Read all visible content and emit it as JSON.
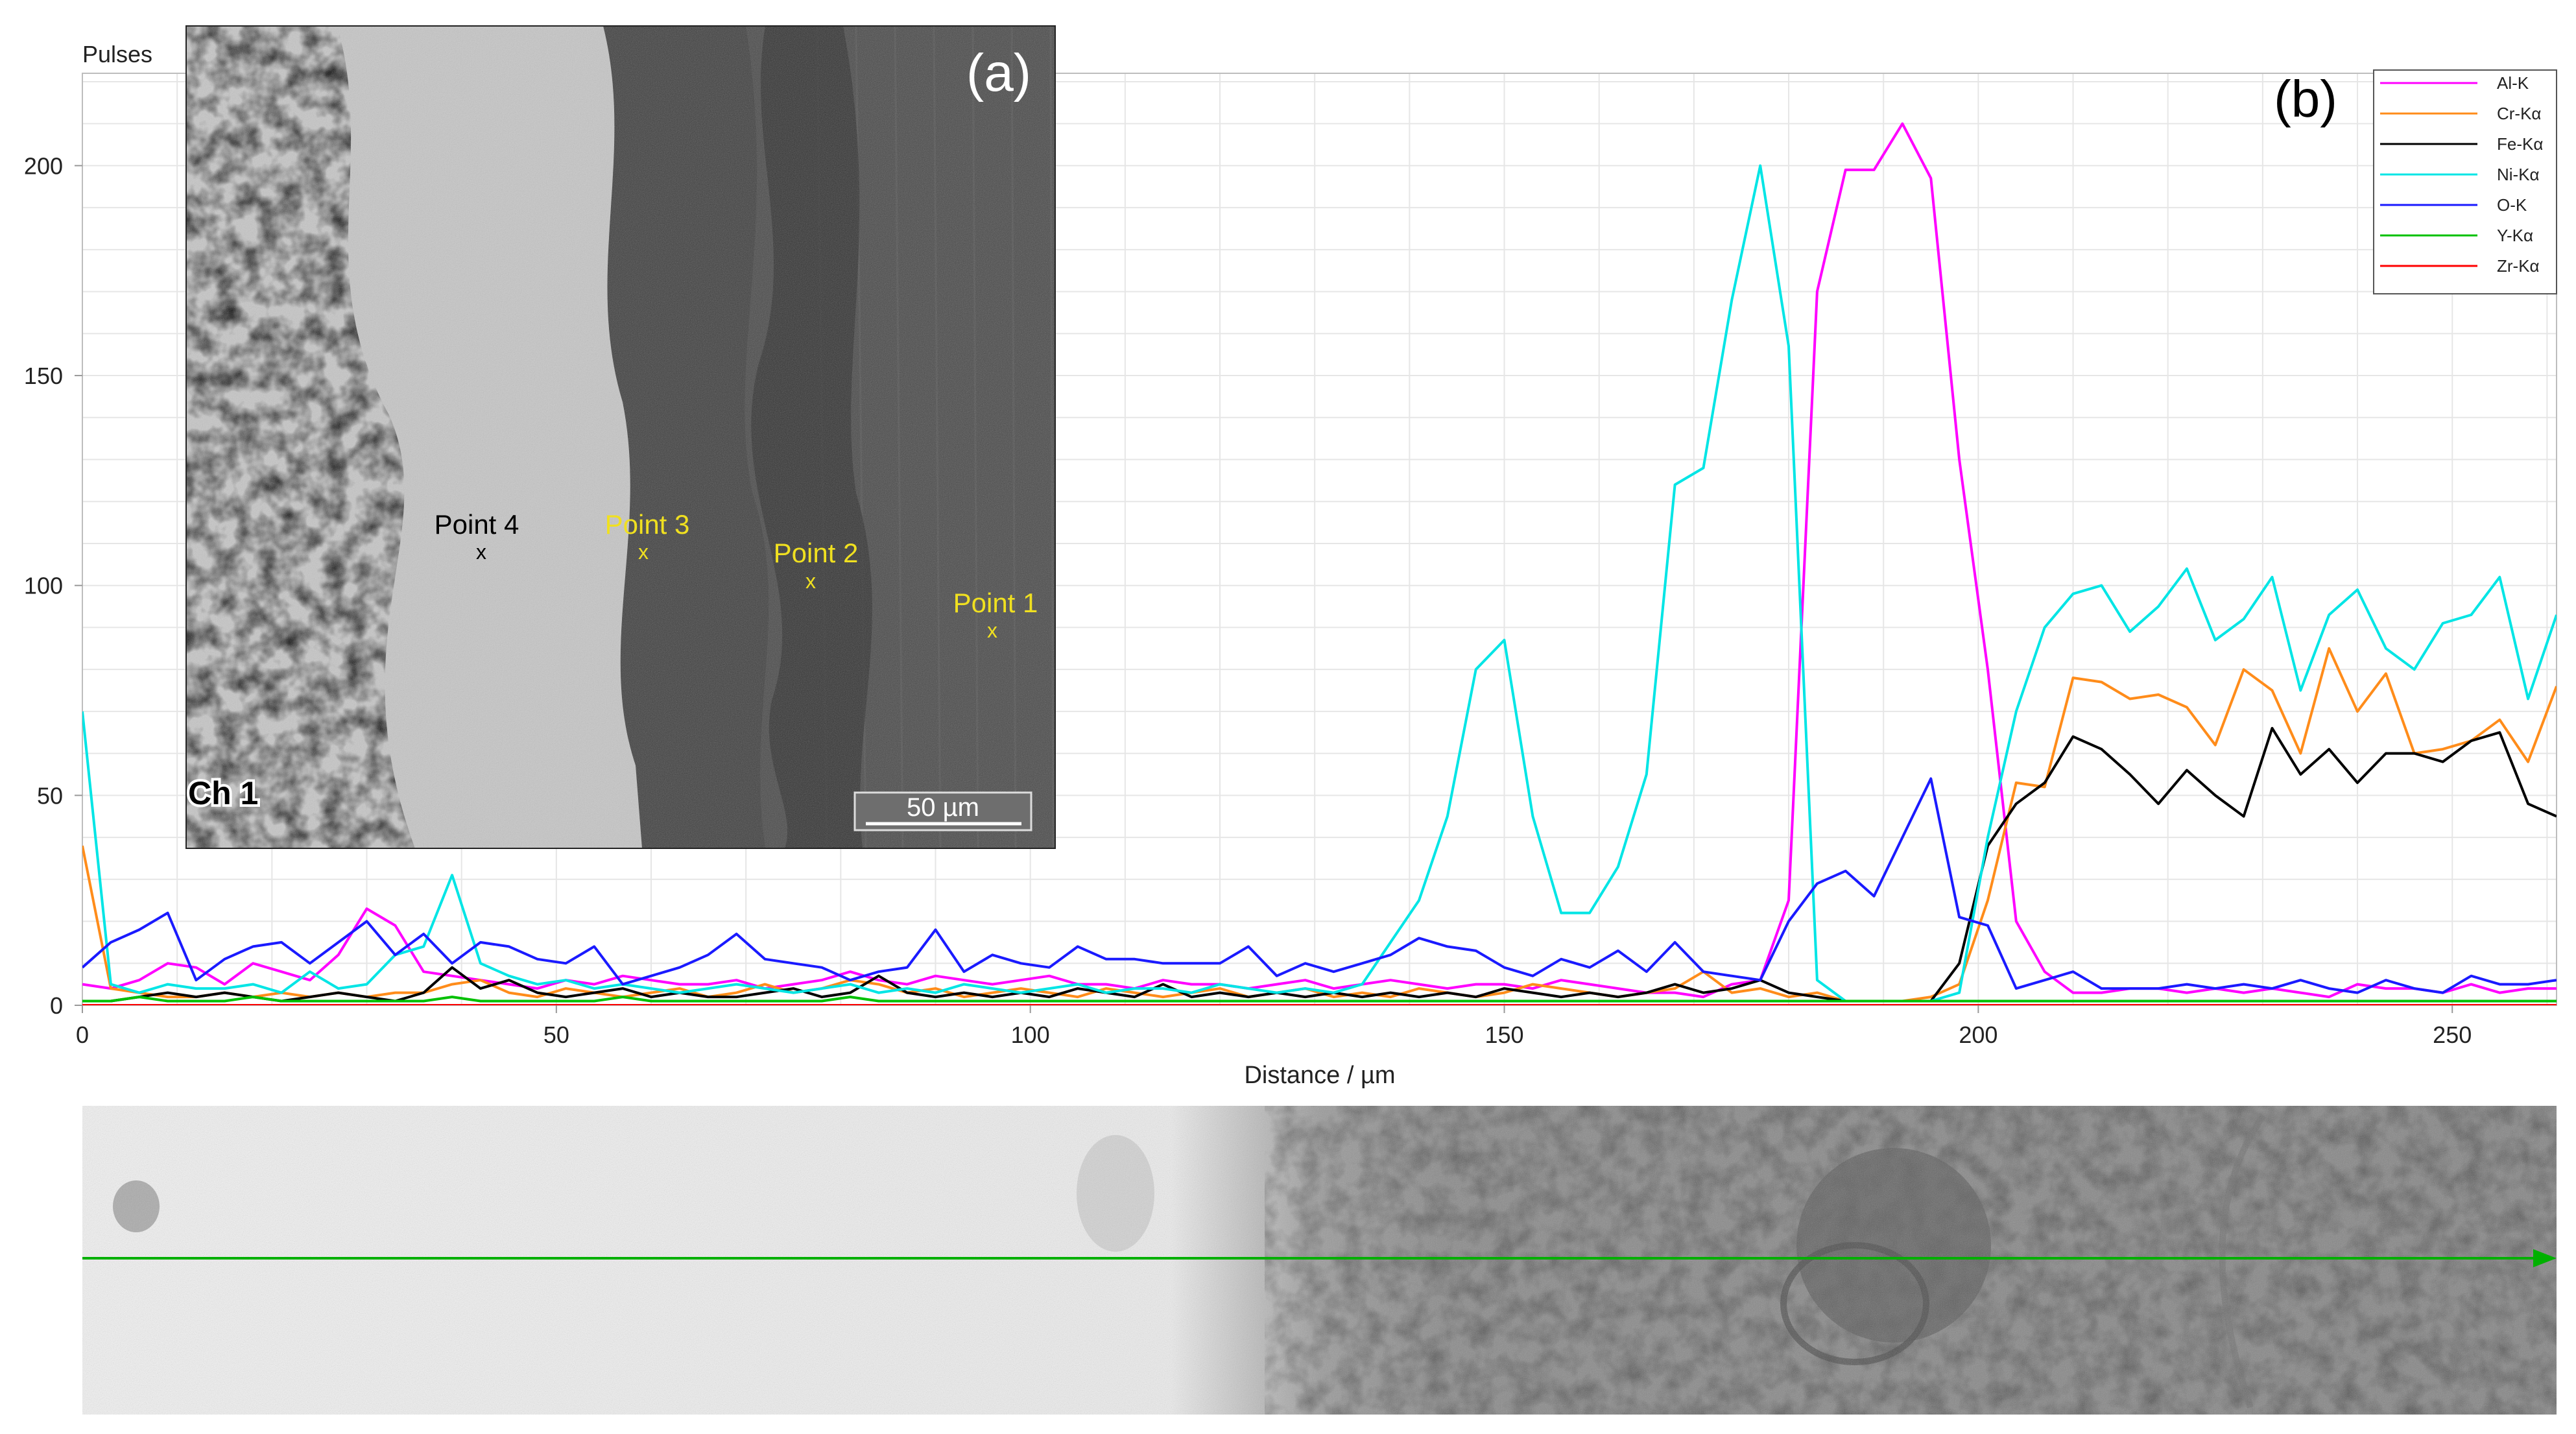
{
  "chart_data": {
    "type": "line",
    "panel_label": "(b)",
    "ylabel": "Pulses",
    "xlabel": "Distance / µm",
    "xlim": [
      0,
      261
    ],
    "ylim": [
      0,
      222
    ],
    "xticks": [
      0,
      50,
      100,
      150,
      200,
      250
    ],
    "yticks": [
      0,
      50,
      100,
      150,
      200
    ],
    "grid": true,
    "legend_position": "top-right",
    "x": [
      0,
      3,
      6,
      9,
      12,
      15,
      18,
      21,
      24,
      27,
      30,
      33,
      36,
      39,
      42,
      45,
      48,
      51,
      54,
      57,
      60,
      63,
      66,
      69,
      72,
      75,
      78,
      81,
      84,
      87,
      90,
      93,
      96,
      99,
      102,
      105,
      108,
      111,
      114,
      117,
      120,
      123,
      126,
      129,
      132,
      135,
      138,
      141,
      144,
      147,
      150,
      153,
      156,
      159,
      162,
      165,
      168,
      171,
      174,
      177,
      180,
      183,
      186,
      189,
      192,
      195,
      198,
      201,
      204,
      207,
      210,
      213,
      216,
      219,
      222,
      225,
      228,
      231,
      234,
      237,
      240,
      243,
      246,
      249,
      252,
      255,
      258,
      261
    ],
    "series": [
      {
        "name": "Al-K",
        "color": "#ff00ff",
        "values": [
          5,
          4,
          6,
          10,
          9,
          5,
          10,
          8,
          6,
          12,
          23,
          19,
          8,
          7,
          6,
          5,
          4,
          6,
          5,
          7,
          6,
          5,
          5,
          6,
          4,
          5,
          6,
          8,
          6,
          5,
          7,
          6,
          5,
          6,
          7,
          5,
          5,
          4,
          6,
          5,
          5,
          4,
          5,
          6,
          4,
          5,
          6,
          5,
          4,
          5,
          5,
          4,
          6,
          5,
          4,
          3,
          3,
          2,
          5,
          6,
          25,
          170,
          199,
          199,
          210,
          197,
          130,
          80,
          20,
          8,
          3,
          3,
          4,
          4,
          3,
          4,
          3,
          4,
          3,
          2,
          5,
          4,
          4,
          3,
          5,
          3,
          4,
          4
        ]
      },
      {
        "name": "Cr-Kα",
        "color": "#ff8c1a",
        "values": [
          38,
          4,
          3,
          2,
          2,
          3,
          2,
          3,
          2,
          3,
          2,
          3,
          3,
          5,
          6,
          3,
          2,
          4,
          3,
          2,
          3,
          4,
          2,
          3,
          5,
          3,
          4,
          6,
          5,
          3,
          4,
          2,
          3,
          4,
          3,
          2,
          4,
          3,
          2,
          3,
          4,
          2,
          3,
          4,
          2,
          3,
          2,
          4,
          3,
          2,
          3,
          5,
          4,
          3,
          2,
          3,
          4,
          8,
          3,
          4,
          2,
          3,
          1,
          1,
          1,
          2,
          5,
          25,
          53,
          52,
          78,
          77,
          73,
          74,
          71,
          62,
          80,
          75,
          60,
          85,
          70,
          79,
          60,
          61,
          63,
          68,
          58,
          76
        ]
      },
      {
        "name": "Fe-Kα",
        "color": "#000000",
        "values": [
          1,
          1,
          2,
          3,
          2,
          3,
          2,
          1,
          2,
          3,
          2,
          1,
          3,
          9,
          4,
          6,
          3,
          2,
          3,
          4,
          2,
          3,
          2,
          2,
          3,
          4,
          2,
          3,
          7,
          3,
          2,
          3,
          2,
          3,
          2,
          4,
          3,
          2,
          5,
          2,
          3,
          2,
          3,
          2,
          3,
          2,
          3,
          2,
          3,
          2,
          4,
          3,
          2,
          3,
          2,
          3,
          5,
          3,
          4,
          6,
          3,
          2,
          1,
          1,
          1,
          1,
          10,
          38,
          48,
          53,
          64,
          61,
          55,
          48,
          56,
          50,
          45,
          66,
          55,
          61,
          53,
          60,
          60,
          58,
          63,
          65,
          48,
          45
        ]
      },
      {
        "name": "Ni-Kα",
        "color": "#00e5e5",
        "values": [
          70,
          5,
          3,
          5,
          4,
          4,
          5,
          3,
          8,
          4,
          5,
          12,
          14,
          31,
          10,
          7,
          5,
          6,
          4,
          5,
          4,
          3,
          4,
          5,
          4,
          3,
          4,
          5,
          3,
          4,
          3,
          5,
          4,
          3,
          4,
          5,
          3,
          4,
          4,
          3,
          5,
          4,
          3,
          4,
          3,
          5,
          15,
          25,
          45,
          80,
          87,
          45,
          22,
          22,
          33,
          55,
          124,
          128,
          168,
          200,
          157,
          6,
          1,
          1,
          1,
          1,
          3,
          40,
          70,
          90,
          98,
          100,
          89,
          95,
          104,
          87,
          92,
          102,
          75,
          93,
          99,
          85,
          80,
          91,
          93,
          102,
          73,
          93
        ]
      },
      {
        "name": "O-K",
        "color": "#1a1aff",
        "values": [
          9,
          15,
          18,
          22,
          6,
          11,
          14,
          15,
          10,
          15,
          20,
          12,
          17,
          10,
          15,
          14,
          11,
          10,
          14,
          5,
          7,
          9,
          12,
          17,
          11,
          10,
          9,
          6,
          8,
          9,
          18,
          8,
          12,
          10,
          9,
          14,
          11,
          11,
          10,
          10,
          10,
          14,
          7,
          10,
          8,
          10,
          12,
          16,
          14,
          13,
          9,
          7,
          11,
          9,
          13,
          8,
          15,
          8,
          7,
          6,
          20,
          29,
          32,
          26,
          40,
          54,
          21,
          19,
          4,
          6,
          8,
          4,
          4,
          4,
          5,
          4,
          5,
          4,
          6,
          4,
          3,
          6,
          4,
          3,
          7,
          5,
          5,
          6
        ]
      },
      {
        "name": "Y-Kα",
        "color": "#00c000",
        "values": [
          1,
          1,
          2,
          1,
          1,
          1,
          2,
          1,
          1,
          1,
          1,
          1,
          1,
          2,
          1,
          1,
          1,
          1,
          1,
          2,
          1,
          1,
          1,
          1,
          1,
          1,
          1,
          2,
          1,
          1,
          1,
          1,
          1,
          1,
          1,
          1,
          1,
          1,
          1,
          1,
          1,
          1,
          1,
          1,
          1,
          1,
          1,
          1,
          1,
          1,
          1,
          1,
          1,
          1,
          1,
          1,
          1,
          1,
          1,
          1,
          1,
          1,
          1,
          1,
          1,
          1,
          1,
          1,
          1,
          1,
          1,
          1,
          1,
          1,
          1,
          1,
          1,
          1,
          1,
          1,
          1,
          1,
          1,
          1,
          1,
          1,
          1,
          1
        ]
      },
      {
        "name": "Zr-Kα",
        "color": "#ff0000",
        "values": [
          0,
          0,
          0,
          0,
          0,
          0,
          0,
          0,
          0,
          0,
          0,
          0,
          0,
          0,
          0,
          0,
          0,
          0,
          0,
          0,
          0,
          0,
          0,
          0,
          0,
          0,
          0,
          0,
          0,
          0,
          0,
          0,
          0,
          0,
          0,
          0,
          0,
          0,
          0,
          0,
          0,
          0,
          0,
          0,
          0,
          0,
          0,
          0,
          0,
          0,
          0,
          0,
          0,
          0,
          0,
          0,
          0,
          0,
          0,
          0,
          0,
          0,
          0,
          0,
          0,
          0,
          0,
          0,
          0,
          0,
          0,
          0,
          0,
          0,
          0,
          0,
          0,
          0,
          0,
          0,
          0,
          0,
          0,
          0,
          0,
          0,
          0,
          0
        ]
      }
    ]
  },
  "inset": {
    "panel_label": "(a)",
    "channel_label": "Ch 1",
    "scalebar_label": "50 µm",
    "points": [
      {
        "label": "Point 1",
        "marker": "x",
        "color": "#ffff00"
      },
      {
        "label": "Point 2",
        "marker": "x",
        "color": "#ffff00"
      },
      {
        "label": "Point 3",
        "marker": "x",
        "color": "#ffff00"
      },
      {
        "label": "Point 4",
        "marker": "x",
        "color": "#000000"
      }
    ]
  },
  "linescan_strip": {
    "scan_line_color": "#00b000"
  }
}
